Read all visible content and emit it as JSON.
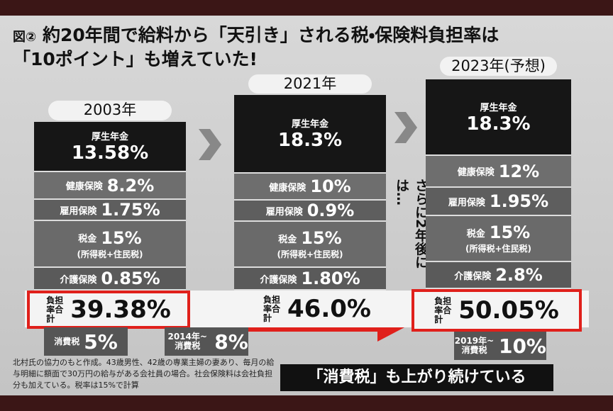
{
  "header": {
    "figure": "図②",
    "title_line1": "約20年間で給料から「天引き」される税・保険料負担率は",
    "title_line2": "「10ポイント」も増えていた!"
  },
  "columns": [
    {
      "year": "2003年",
      "pension_label": "厚生年金",
      "pension": "13.58%",
      "health_label": "健康保険",
      "health": "8.2%",
      "employment_label": "雇用保険",
      "employment": "1.75%",
      "tax_label": "税金",
      "tax": "15%",
      "tax_note": "(所得税+住民税)",
      "care_label": "介護保険",
      "care": "0.85%",
      "total_label": "負担率合計",
      "total": "39.38%",
      "consumption_label": "消費税",
      "consumption": "5%"
    },
    {
      "year": "2021年",
      "pension_label": "厚生年金",
      "pension": "18.3%",
      "health_label": "健康保険",
      "health": "10%",
      "employment_label": "雇用保険",
      "employment": "0.9%",
      "tax_label": "税金",
      "tax": "15%",
      "tax_note": "(所得税+住民税)",
      "care_label": "介護保険",
      "care": "1.80%",
      "total_label": "負担率合計",
      "total": "46.0%",
      "consumption_label": "2014年~消費税",
      "consumption": "8%"
    },
    {
      "year": "2023年(予想)",
      "pension_label": "厚生年金",
      "pension": "18.3%",
      "health_label": "健康保険",
      "health": "12%",
      "employment_label": "雇用保険",
      "employment": "1.95%",
      "tax_label": "税金",
      "tax": "15%",
      "tax_note": "(所得税+住民税)",
      "care_label": "介護保険",
      "care": "2.8%",
      "total_label": "負担率合計",
      "total": "50.05%",
      "consumption_label": "2019年~消費税",
      "consumption": "10%"
    }
  ],
  "middle_note": "さらに2年後には…",
  "footnote": "北村氏の協力のもと作成。43歳男性、42歳の専業主婦の妻あり、毎月の給与明細に額面で30万円の給与がある会社員の場合。社会保険料は会社負担分も加えている。税率は15%で計算",
  "banner": "「消費税」も上がり続けている"
}
